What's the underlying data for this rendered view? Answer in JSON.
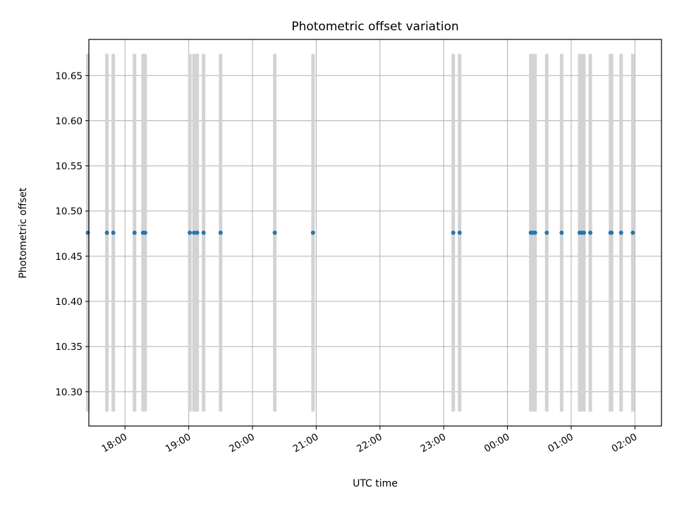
{
  "chart_data": {
    "type": "scatter",
    "title": "Photometric offset variation",
    "xlabel": "UTC time",
    "ylabel": "Photometric offset",
    "x_axis": "time",
    "xlim": [
      "17:26",
      "02:25"
    ],
    "ylim": [
      10.262,
      10.69
    ],
    "grid": true,
    "x_ticks": [
      "18:00",
      "19:00",
      "20:00",
      "21:00",
      "22:00",
      "23:00",
      "00:00",
      "01:00",
      "02:00"
    ],
    "y_ticks": [
      "10.30",
      "10.35",
      "10.40",
      "10.45",
      "10.50",
      "10.55",
      "10.60",
      "10.65"
    ],
    "error_bars": {
      "color": "#d3d3d3",
      "low": 10.278,
      "high": 10.674
    },
    "series": [
      {
        "color": "#1f77b4",
        "points": [
          {
            "x": "17:25",
            "y": 10.476
          },
          {
            "x": "17:43",
            "y": 10.476
          },
          {
            "x": "17:49",
            "y": 10.476
          },
          {
            "x": "18:09",
            "y": 10.476
          },
          {
            "x": "18:17",
            "y": 10.476
          },
          {
            "x": "18:19",
            "y": 10.476
          },
          {
            "x": "19:01",
            "y": 10.476
          },
          {
            "x": "19:05",
            "y": 10.476
          },
          {
            "x": "19:08",
            "y": 10.476
          },
          {
            "x": "19:14",
            "y": 10.476
          },
          {
            "x": "19:30",
            "y": 10.476
          },
          {
            "x": "20:21",
            "y": 10.476
          },
          {
            "x": "20:57",
            "y": 10.476
          },
          {
            "x": "23:09",
            "y": 10.476
          },
          {
            "x": "23:15",
            "y": 10.476
          },
          {
            "x": "00:22",
            "y": 10.476
          },
          {
            "x": "00:24",
            "y": 10.476
          },
          {
            "x": "00:26",
            "y": 10.476
          },
          {
            "x": "00:37",
            "y": 10.476
          },
          {
            "x": "00:51",
            "y": 10.476
          },
          {
            "x": "01:08",
            "y": 10.476
          },
          {
            "x": "01:10",
            "y": 10.476
          },
          {
            "x": "01:12",
            "y": 10.476
          },
          {
            "x": "01:18",
            "y": 10.476
          },
          {
            "x": "01:37",
            "y": 10.476
          },
          {
            "x": "01:38",
            "y": 10.476
          },
          {
            "x": "01:47",
            "y": 10.476
          },
          {
            "x": "01:58",
            "y": 10.476
          }
        ]
      }
    ]
  }
}
